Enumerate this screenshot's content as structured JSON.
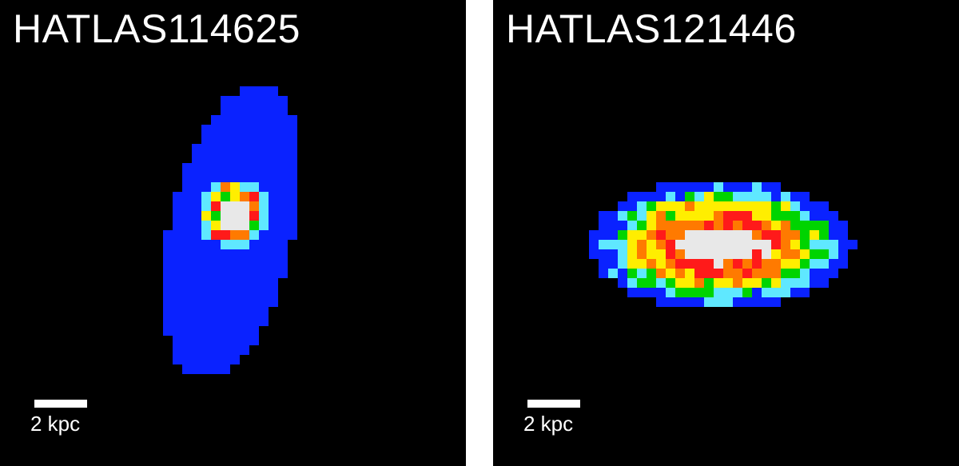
{
  "panels": [
    {
      "title": "HATLAS114625",
      "scale_label": "2 kpc",
      "image": "compact blue galaxy with bright ring-shaped core",
      "colormap": [
        "#00008a",
        "#0a22ff",
        "#5fe8ff",
        "#00d400",
        "#ffee00",
        "#ff7a00",
        "#ff1a1a",
        "#e8e8e8"
      ]
    },
    {
      "title": "HATLAS121446",
      "scale_label": "2 kpc",
      "image": "elongated galaxy with bright central bar",
      "colormap": [
        "#00008a",
        "#0a22ff",
        "#5fe8ff",
        "#00d400",
        "#ffee00",
        "#ff7a00",
        "#ff1a1a",
        "#e8e8e8"
      ]
    }
  ]
}
